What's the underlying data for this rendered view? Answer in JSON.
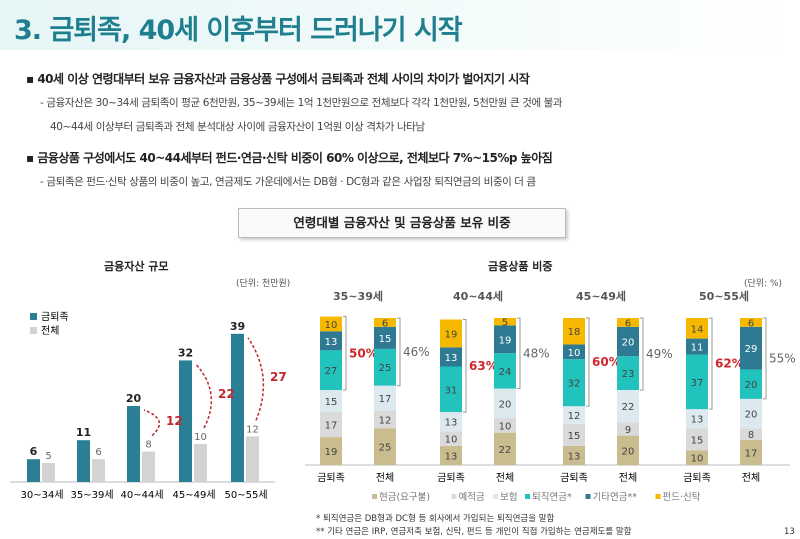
{
  "title": "3. 금퇴족, 40세 이후부터 드러나기 시작",
  "bullets": [
    {
      "main": "40세 이상 연령대부터 보유 금융자산과 금융상품 구성에서 금퇴족과 전체 사이의 차이가 벌어지기 시작",
      "subs": [
        "- 금융자산은 30~34세 금퇴족이 평균 6천만원, 35~39세는 1억 1천만원으로 전체보다 각각 1천만원, 5천만원 큰 것에 불과",
        "40~44세 이상부터 금퇴족과 전체 분석대상 사이에 금융자산이 1억원 이상 격차가 나타남"
      ]
    },
    {
      "main": "금융상품 구성에서도 40~44세부터 펀드·연금·신탁 비중이 60% 이상으로, 전체보다 7%~15%p 높아짐",
      "subs": [
        "- 금퇴족은 펀드·신탁 상품의 비중이 높고, 연금제도 가운데에서는 DB형 · DC형과 같은 사업장 퇴직연금의 비중이 더 큼"
      ]
    }
  ],
  "section_title": "연령대별 금융자산 및 금융상품 보유 비중",
  "chart_data": [
    {
      "type": "bar",
      "title": "금융자산 규모",
      "unit": "(단위: 천만원)",
      "categories": [
        "30~34세",
        "35~39세",
        "40~44세",
        "45~49세",
        "50~55세"
      ],
      "series": [
        {
          "name": "금퇴족",
          "values": [
            6,
            11,
            20,
            32,
            39
          ],
          "color": "#2b7f95"
        },
        {
          "name": "전체",
          "values": [
            5,
            6,
            8,
            10,
            12
          ],
          "color": "#d3d3d3"
        }
      ],
      "annotations": [
        {
          "category": "40~44세",
          "gap": "12"
        },
        {
          "category": "45~49세",
          "gap": "22"
        },
        {
          "category": "50~55세",
          "gap": "27"
        }
      ]
    },
    {
      "type": "bar",
      "stacked": true,
      "title": "금융상품 비중",
      "unit": "(단위: %)",
      "groups": [
        "35~39세",
        "40~44세",
        "45~49세",
        "50~55세"
      ],
      "bar_labels": [
        "금퇴족",
        "전체"
      ],
      "series": [
        {
          "name": "현금(요구불)",
          "color": "#c9bc8f",
          "values": [
            [
              19,
              25
            ],
            [
              13,
              22
            ],
            [
              13,
              20
            ],
            [
              10,
              17
            ]
          ]
        },
        {
          "name": "예적금",
          "color": "#dadada",
          "values": [
            [
              17,
              12
            ],
            [
              10,
              10
            ],
            [
              15,
              9
            ],
            [
              15,
              8
            ]
          ]
        },
        {
          "name": "보험",
          "color": "#dceaf0",
          "values": [
            [
              15,
              17
            ],
            [
              13,
              20
            ],
            [
              12,
              22
            ],
            [
              13,
              20
            ]
          ]
        },
        {
          "name": "퇴직연금*",
          "color": "#22c3bd",
          "values": [
            [
              27,
              25
            ],
            [
              31,
              24
            ],
            [
              32,
              23
            ],
            [
              37,
              20
            ]
          ]
        },
        {
          "name": "기타연금**",
          "color": "#2e7a93",
          "values": [
            [
              13,
              15
            ],
            [
              13,
              19
            ],
            [
              10,
              20
            ],
            [
              11,
              29
            ]
          ]
        },
        {
          "name": "펀드·신탁",
          "color": "#f7b900",
          "values": [
            [
              10,
              6
            ],
            [
              19,
              5
            ],
            [
              18,
              6
            ],
            [
              14,
              6
            ]
          ]
        }
      ],
      "bracket_totals": [
        [
          "50%",
          "46%"
        ],
        [
          "63%",
          "48%"
        ],
        [
          "60%",
          "49%"
        ],
        [
          "62%",
          "55%"
        ]
      ]
    }
  ],
  "footnotes": [
    "* 퇴직연금은 DB형과 DC형 등 회사에서 가입되는 퇴직연금을 말함",
    "** 기타 연금은 IRP, 연금저축 보험, 신탁, 펀드 등 개인이 직접 가입하는 연금제도를 말함"
  ],
  "page_number": "13"
}
